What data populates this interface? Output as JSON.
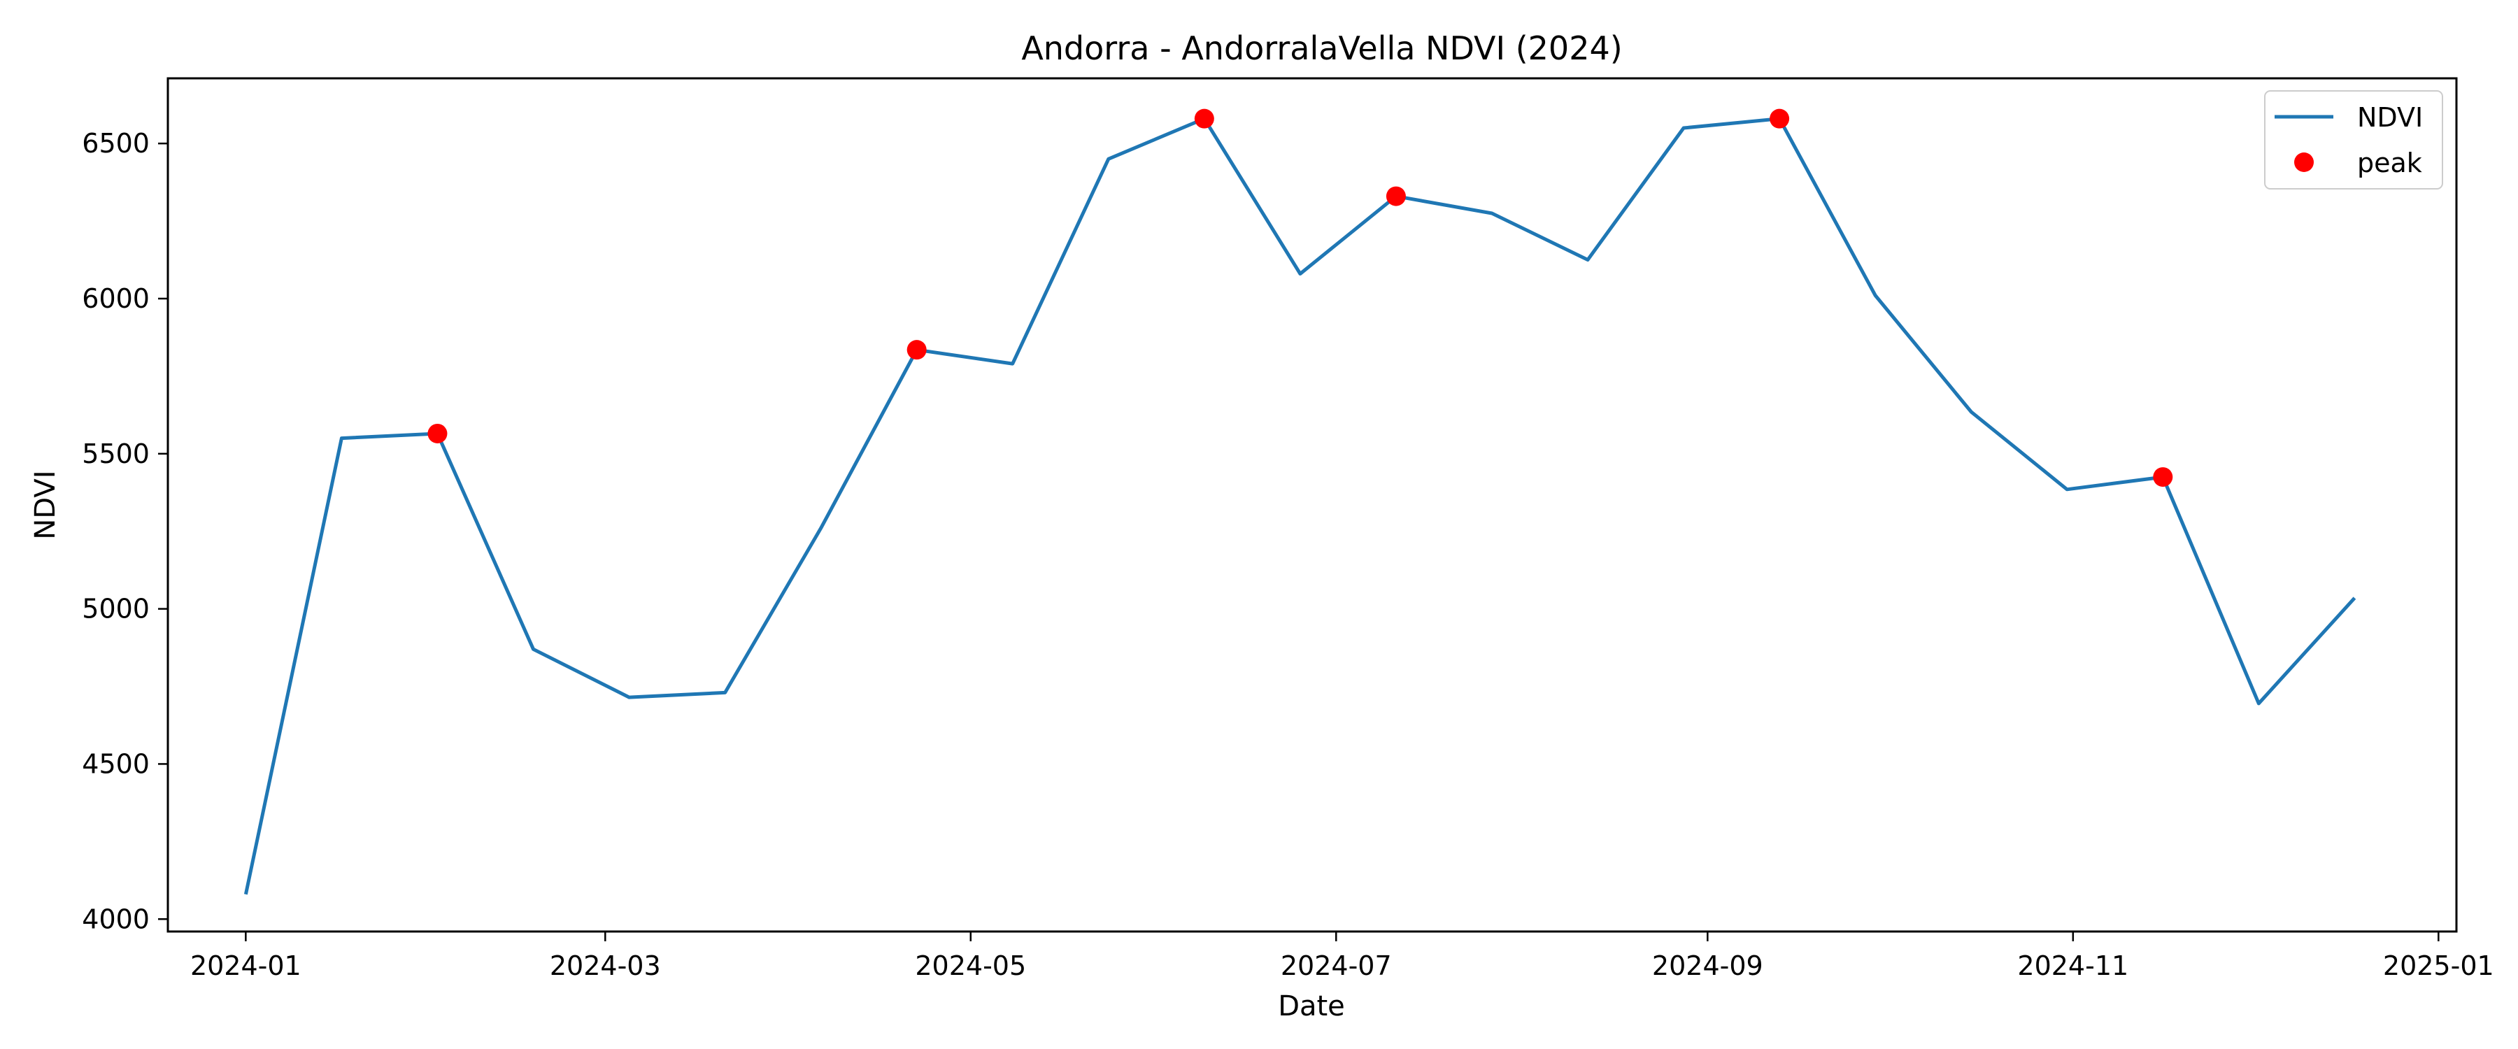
{
  "chart_data": {
    "type": "line",
    "title": "Andorra - AndorralaVella NDVI (2024)",
    "xlabel": "Date",
    "ylabel": "NDVI",
    "x_ticks": [
      "2024-01",
      "2024-03",
      "2024-05",
      "2024-07",
      "2024-09",
      "2024-11",
      "2025-01"
    ],
    "y_ticks": [
      4000,
      4500,
      5000,
      5500,
      6000,
      6500
    ],
    "xlim": [
      "2023-12-19",
      "2025-01-04"
    ],
    "ylim": [
      3960,
      6710
    ],
    "grid": false,
    "legend_position": "top-right",
    "legend": [
      "NDVI",
      "peak"
    ],
    "colors": {
      "line": "#1f77b4",
      "peak": "#ff0000"
    },
    "series": [
      {
        "name": "NDVI",
        "x": [
          "2024-01-01",
          "2024-01-17",
          "2024-02-02",
          "2024-02-18",
          "2024-03-05",
          "2024-03-21",
          "2024-04-06",
          "2024-04-22",
          "2024-05-08",
          "2024-05-24",
          "2024-06-09",
          "2024-06-25",
          "2024-07-11",
          "2024-07-27",
          "2024-08-12",
          "2024-08-28",
          "2024-09-13",
          "2024-09-29",
          "2024-10-15",
          "2024-10-31",
          "2024-11-16",
          "2024-12-02",
          "2024-12-18"
        ],
        "values": [
          4080,
          5550,
          5565,
          4870,
          4715,
          4730,
          5260,
          5835,
          5790,
          6450,
          6580,
          6080,
          6330,
          6275,
          6125,
          6550,
          6580,
          6010,
          5635,
          5385,
          5425,
          4695,
          5035
        ]
      },
      {
        "name": "peak",
        "x": [
          "2024-02-02",
          "2024-04-22",
          "2024-06-09",
          "2024-07-11",
          "2024-09-13",
          "2024-11-16"
        ],
        "values": [
          5565,
          5835,
          6580,
          6330,
          6580,
          5425
        ]
      }
    ]
  }
}
